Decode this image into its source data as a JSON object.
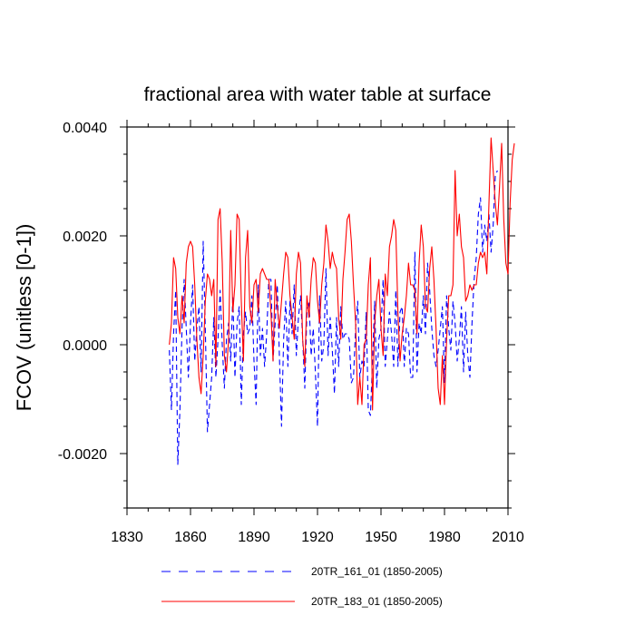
{
  "chart_data": {
    "type": "line",
    "title": "fractional area with water table at surface",
    "xlabel": "",
    "ylabel": "FCOV  (unitless [0-1])",
    "xlim": [
      1830,
      2010
    ],
    "ylim": [
      -0.003,
      0.004
    ],
    "x_ticks": [
      1830,
      1860,
      1890,
      1920,
      1950,
      1980,
      2010
    ],
    "x_tick_labels": [
      "1830",
      "1860",
      "1890",
      "1920",
      "1950",
      "1980",
      "2010"
    ],
    "y_ticks": [
      -0.002,
      0.0,
      0.002,
      0.004
    ],
    "y_tick_labels": [
      "-0.0020",
      "0.0000",
      "0.0020",
      "0.0040"
    ],
    "grid": false,
    "x_start": 1850,
    "series": [
      {
        "name": "20TR_161_01 (1850-2005)",
        "legend_label": "20TR_161_01 (1850-2005)",
        "color": "#0000ff",
        "style": "dashed",
        "values": [
          -0.0001,
          -0.0012,
          0.0002,
          0.001,
          -0.0022,
          -0.0012,
          0.0003,
          0.0012,
          0.0003,
          -0.0006,
          0.0004,
          0.0011,
          -0.0003,
          0.0003,
          0.0007,
          -0.0005,
          0.0019,
          0.0003,
          -0.0016,
          -0.0011,
          -0.0006,
          0.0005,
          -0.0006,
          0.0001,
          0.001,
          0.0,
          -0.0008,
          0.0001,
          0.0004,
          -0.0003,
          0.0009,
          -0.0006,
          0.0004,
          0.0007,
          -0.0011,
          0.0002,
          0.0006,
          0.0002,
          0.0003,
          0.0009,
          -0.0003,
          -0.0011,
          0.0011,
          -0.0002,
          0.0003,
          -0.0004,
          0.0002,
          0.0012,
          0.0012,
          -0.0003,
          0.0004,
          0.0011,
          -0.0002,
          -0.0015,
          0.0001,
          0.0008,
          -0.0004,
          0.0008,
          0.0002,
          0.0011,
          -0.0002,
          0.0005,
          0.0009,
          0.0001,
          -0.0008,
          0.0006,
          0.0008,
          -0.0002,
          0.0003,
          -0.0005,
          -0.0015,
          0.0009,
          -0.0003,
          0.0,
          0.0014,
          -0.0002,
          0.0005,
          -0.0001,
          -0.0009,
          0.0005,
          -0.0004,
          0.0007,
          0.0001,
          0.0002,
          0.0002,
          0.0001,
          -0.0007,
          -0.0006,
          0.0003,
          0.0008,
          -0.0006,
          -0.0003,
          -0.0004,
          0.0006,
          -0.0012,
          -0.0013,
          -0.0003,
          0.0008,
          -0.0008,
          0.0001,
          0.0003,
          0.0012,
          -0.0004,
          0.0001,
          0.0006,
          0.0002,
          -0.0004,
          0.001,
          -0.0004,
          0.0006,
          0.0007,
          -0.0004,
          0.0003,
          0.0002,
          -0.0006,
          -0.0006,
          0.0017,
          -0.0005,
          0.0004,
          0.0002,
          0.0009,
          0.0002,
          0.0015,
          0.001,
          0.0003,
          -0.0002,
          -0.0004,
          -0.0001,
          0.0003,
          0.0007,
          -0.0007,
          0.0009,
          0.0003,
          -0.0001,
          0.0008,
          0.0004,
          -0.0003,
          0.0001,
          0.0007,
          -0.0005,
          0.0006,
          -0.0002,
          -0.0006,
          0.0004,
          0.0012,
          0.0016,
          0.0024,
          0.0027,
          0.0017,
          0.0022,
          0.0019,
          0.0024,
          0.0017,
          0.0022,
          0.0031,
          0.0032
        ]
      },
      {
        "name": "20TR_183_01 (1850-2005)",
        "legend_label": "20TR_183_01 (1850-2005)",
        "color": "#ff0000",
        "style": "solid",
        "values": [
          0.0,
          0.0004,
          0.0016,
          0.0014,
          0.0005,
          0.0002,
          0.0009,
          0.0004,
          0.0015,
          0.0018,
          0.0019,
          0.0018,
          0.0011,
          0.0001,
          -0.0006,
          -0.0009,
          -0.0002,
          0.0008,
          0.0013,
          0.0012,
          0.0009,
          0.0012,
          -0.0004,
          0.0023,
          0.0025,
          0.0015,
          -0.0002,
          -0.0005,
          0.0001,
          0.0021,
          0.0006,
          0.0011,
          0.0024,
          0.0023,
          0.0008,
          -0.0003,
          0.0016,
          0.0021,
          0.0007,
          0.0004,
          0.0011,
          0.0012,
          0.0006,
          0.0013,
          0.0014,
          0.0013,
          0.0012,
          0.0012,
          0.0006,
          -0.0003,
          0.0012,
          0.0007,
          0.0003,
          0.0008,
          0.0013,
          0.0017,
          0.0016,
          0.0009,
          0.0005,
          0.0001,
          0.0013,
          0.0017,
          0.0015,
          0.0001,
          -0.0004,
          0.0009,
          0.0005,
          0.0012,
          0.0016,
          0.0015,
          0.0008,
          0.0004,
          0.0011,
          0.0015,
          0.0022,
          0.0019,
          0.0014,
          0.0017,
          0.0015,
          0.0014,
          0.0005,
          0.0001,
          0.0012,
          0.0017,
          0.0023,
          0.0024,
          0.0019,
          0.0011,
          0.0004,
          -0.0011,
          -0.0006,
          -0.0011,
          0.0,
          0.0001,
          0.0011,
          0.0016,
          -0.0012,
          0.0004,
          0.0009,
          0.0012,
          0.0003,
          -0.0002,
          0.0013,
          0.0009,
          0.0018,
          0.002,
          0.0023,
          0.0021,
          0.0006,
          -0.0003,
          0.0002,
          0.0005,
          0.0009,
          0.0015,
          0.0011,
          0.0011,
          0.001,
          0.0002,
          0.0015,
          0.0022,
          0.0018,
          0.0007,
          0.0006,
          0.0014,
          0.0018,
          0.0012,
          0.0003,
          -0.0008,
          -0.0011,
          -0.0002,
          -0.0011,
          0.0001,
          0.0009,
          0.0009,
          0.0011,
          0.0032,
          0.002,
          0.0024,
          0.0018,
          0.0016,
          0.0008,
          0.0009,
          0.0011,
          0.001,
          0.0011,
          0.0011,
          0.0015,
          0.0017,
          0.0016,
          0.0017,
          0.0013,
          0.0026,
          0.0038,
          0.0032,
          0.0026,
          0.0022,
          0.0029,
          0.0037,
          0.0023,
          0.0015,
          0.0013,
          0.0026,
          0.0034,
          0.0037
        ]
      }
    ],
    "legend_placement": "bottom"
  }
}
